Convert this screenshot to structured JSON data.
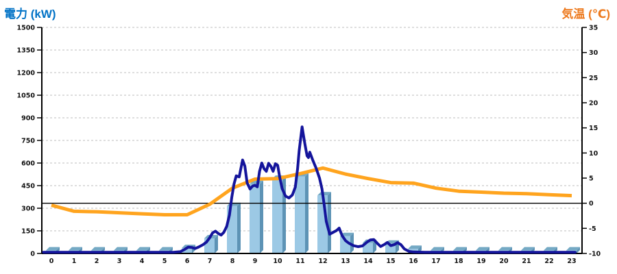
{
  "chart_data": {
    "type": "combo",
    "titles": {
      "left": "電力 (kW)",
      "right": "気温 (℃)"
    },
    "left_axis": {
      "title": "電力 (kW)",
      "unit": "kW",
      "min": 0,
      "max": 1500,
      "tick_step": 150,
      "ticks": [
        "1500",
        "1350",
        "1200",
        "1050",
        "900",
        "750",
        "600",
        "450",
        "300",
        "150",
        "0"
      ]
    },
    "right_axis": {
      "title": "気温 (℃)",
      "unit": "℃",
      "min": -10,
      "max": 35,
      "tick_step": 5,
      "ticks": [
        "35",
        "30",
        "25",
        "20",
        "15",
        "10",
        "5",
        "0",
        "-5",
        "-10"
      ]
    },
    "x_axis": {
      "labels": [
        "0",
        "1",
        "2",
        "3",
        "4",
        "5",
        "6",
        "7",
        "8",
        "9",
        "10",
        "11",
        "12",
        "13",
        "14",
        "15",
        "16",
        "17",
        "18",
        "19",
        "20",
        "21",
        "22",
        "23"
      ]
    },
    "grid": {
      "on": true,
      "zero_temp_reference_line": 0
    },
    "series": {
      "power_bars": {
        "name": "power-per-hour-bars",
        "type": "bar",
        "axis": "left",
        "values": [
          20,
          20,
          20,
          20,
          20,
          20,
          35,
          100,
          315,
          460,
          495,
          510,
          385,
          115,
          70,
          65,
          30,
          20,
          20,
          20,
          20,
          20,
          20,
          20
        ]
      },
      "power_line": {
        "name": "power-curve",
        "type": "line",
        "axis": "left",
        "points": [
          [
            -0.35,
            8
          ],
          [
            0,
            8
          ],
          [
            1,
            8
          ],
          [
            2,
            8
          ],
          [
            3,
            8
          ],
          [
            4,
            8
          ],
          [
            5,
            8
          ],
          [
            5.4,
            8
          ],
          [
            5.7,
            12
          ],
          [
            5.9,
            28
          ],
          [
            6.05,
            42
          ],
          [
            6.2,
            40
          ],
          [
            6.35,
            33
          ],
          [
            6.5,
            42
          ],
          [
            6.7,
            58
          ],
          [
            6.85,
            75
          ],
          [
            7.0,
            105
          ],
          [
            7.12,
            136
          ],
          [
            7.25,
            148
          ],
          [
            7.38,
            132
          ],
          [
            7.5,
            122
          ],
          [
            7.62,
            140
          ],
          [
            7.75,
            180
          ],
          [
            7.87,
            255
          ],
          [
            7.97,
            370
          ],
          [
            8.07,
            460
          ],
          [
            8.17,
            515
          ],
          [
            8.3,
            508
          ],
          [
            8.45,
            620
          ],
          [
            8.55,
            580
          ],
          [
            8.65,
            468
          ],
          [
            8.78,
            428
          ],
          [
            8.9,
            448
          ],
          [
            9.0,
            452
          ],
          [
            9.1,
            442
          ],
          [
            9.2,
            545
          ],
          [
            9.3,
            600
          ],
          [
            9.4,
            562
          ],
          [
            9.5,
            545
          ],
          [
            9.6,
            598
          ],
          [
            9.7,
            578
          ],
          [
            9.8,
            545
          ],
          [
            9.9,
            595
          ],
          [
            10.0,
            585
          ],
          [
            10.1,
            500
          ],
          [
            10.2,
            430
          ],
          [
            10.35,
            380
          ],
          [
            10.5,
            368
          ],
          [
            10.65,
            388
          ],
          [
            10.78,
            440
          ],
          [
            10.88,
            560
          ],
          [
            10.95,
            680
          ],
          [
            11.08,
            840
          ],
          [
            11.2,
            730
          ],
          [
            11.3,
            648
          ],
          [
            11.36,
            636
          ],
          [
            11.42,
            672
          ],
          [
            11.55,
            620
          ],
          [
            11.7,
            566
          ],
          [
            11.85,
            500
          ],
          [
            11.96,
            428
          ],
          [
            12.05,
            330
          ],
          [
            12.15,
            212
          ],
          [
            12.3,
            128
          ],
          [
            12.45,
            140
          ],
          [
            12.6,
            152
          ],
          [
            12.72,
            168
          ],
          [
            12.85,
            118
          ],
          [
            13.0,
            85
          ],
          [
            13.15,
            68
          ],
          [
            13.35,
            52
          ],
          [
            13.55,
            45
          ],
          [
            13.75,
            50
          ],
          [
            13.95,
            75
          ],
          [
            14.1,
            90
          ],
          [
            14.25,
            92
          ],
          [
            14.4,
            68
          ],
          [
            14.55,
            46
          ],
          [
            14.7,
            58
          ],
          [
            14.85,
            73
          ],
          [
            15.0,
            52
          ],
          [
            15.15,
            58
          ],
          [
            15.3,
            72
          ],
          [
            15.45,
            58
          ],
          [
            15.6,
            30
          ],
          [
            15.8,
            14
          ],
          [
            16.0,
            10
          ],
          [
            16.5,
            8
          ],
          [
            17,
            8
          ],
          [
            18,
            8
          ],
          [
            19,
            8
          ],
          [
            20,
            8
          ],
          [
            21,
            8
          ],
          [
            22,
            8
          ],
          [
            23,
            8
          ],
          [
            23.15,
            8
          ]
        ]
      },
      "temp_line": {
        "name": "temperature-curve",
        "type": "line",
        "axis": "right",
        "values": [
          -0.4,
          -1.6,
          -1.7,
          -1.9,
          -2.1,
          -2.3,
          -2.3,
          -0.2,
          3.0,
          4.8,
          4.9,
          5.9,
          7.0,
          5.8,
          4.9,
          4.1,
          4.0,
          3.0,
          2.4,
          2.2,
          2.0,
          1.9,
          1.7,
          1.5
        ]
      }
    },
    "colors": {
      "bar_front": "#9CC9E5",
      "bar_top": "#74A9C4",
      "bar_side": "#5D93B5",
      "power_line": "#14149B",
      "temp_line": "#FFA41E",
      "grid": "#BDBDBD",
      "axis": "#000000",
      "title_left": "#0072C6",
      "title_right": "#ED7A1E"
    }
  }
}
